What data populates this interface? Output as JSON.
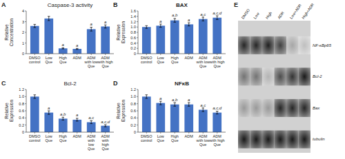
{
  "chart_data": [
    {
      "type": "bar",
      "panel_label": "A",
      "title": "Caspase-3 activity",
      "ylabel": "Relative\nConcentration",
      "categories": [
        "DMSO\ncontrol",
        "Low\nQue",
        "High\nQue",
        "ADM",
        "ADM\nwith low\nQue",
        "ADM\nwith high\nQue"
      ],
      "values": [
        2.6,
        3.3,
        0.5,
        0.45,
        2.3,
        2.55
      ],
      "errors": [
        0.15,
        0.2,
        0.05,
        0.05,
        0.18,
        0.15
      ],
      "annotations": [
        null,
        null,
        "a",
        "a",
        "a",
        "a"
      ],
      "color": "#4472C4",
      "ylim": [
        0,
        4.0
      ],
      "yticks": [
        0,
        1,
        2,
        3,
        4
      ]
    },
    {
      "type": "bar",
      "panel_label": "B",
      "title": "BAX",
      "ylabel": "Relative\nExpression",
      "categories": [
        "DMSO\ncontrol",
        "Low\nQue",
        "High\nQue",
        "ADM",
        "ADM\nwith low\nQue",
        "ADM\nwith high\nQue"
      ],
      "values": [
        1.0,
        1.05,
        1.25,
        1.1,
        1.3,
        1.35
      ],
      "errors": [
        0.05,
        0.06,
        0.07,
        0.06,
        0.07,
        0.07
      ],
      "annotations": [
        null,
        "a",
        "a,b",
        "a",
        "a,c",
        "a,c,d"
      ],
      "color": "#4472C4",
      "ylim": [
        0,
        1.6
      ],
      "yticks": [
        0,
        0.2,
        0.4,
        0.6,
        0.8,
        {
          "value": 1.0,
          "label": "1.0"
        },
        1.2,
        1.4,
        1.6
      ]
    },
    {
      "type": "bar",
      "panel_label": "C",
      "title": "Bcl-2",
      "ylabel": "Relative\nExpression",
      "categories": [
        "DMSO\ncontrol",
        "Low\nQue",
        "High\nQue",
        "ADM",
        "ADM\nwith\nlow\nQue",
        "ADM\nwith\nhigh\nQue"
      ],
      "values": [
        1.0,
        0.55,
        0.38,
        0.35,
        0.28,
        0.18
      ],
      "errors": [
        0.05,
        0.05,
        0.04,
        0.04,
        0.04,
        0.03
      ],
      "annotations": [
        null,
        "a",
        "a,b",
        "a",
        "a,c",
        "a,c,d"
      ],
      "color": "#4472C4",
      "ylim": [
        0,
        1.2
      ],
      "yticks": [
        0,
        0.2,
        0.4,
        0.6,
        0.8,
        {
          "value": 1.0,
          "label": "1.0"
        },
        1.2
      ]
    },
    {
      "type": "bar",
      "panel_label": "D",
      "title": "NFκB",
      "ylabel": "Relative\nExpression",
      "categories": [
        "DMSO\ncontrol",
        "Low\nQue",
        "High\nQue",
        "ADM",
        "ADM\nwith low\nQue",
        "ADM\nwith high\nQue"
      ],
      "values": [
        1.0,
        0.82,
        0.78,
        0.78,
        0.63,
        0.55
      ],
      "errors": [
        0.05,
        0.05,
        0.05,
        0.05,
        0.05,
        0.04
      ],
      "annotations": [
        null,
        "a",
        "a,b",
        "a",
        "a,c",
        "a,c,d"
      ],
      "color": "#4472C4",
      "ylim": [
        0,
        1.2
      ],
      "yticks": [
        0,
        0.2,
        0.4,
        0.6,
        0.8,
        {
          "value": 1.0,
          "label": "1.0"
        },
        1.2
      ]
    },
    {
      "type": "heatmap",
      "panel_label": "E",
      "categories": [
        "DMSO",
        "Low",
        "High",
        "ADR",
        "Low+ADR",
        "High+ADR"
      ],
      "rows": [
        "NF-κBp65",
        "Bcl-2",
        "Bax",
        "tubulin"
      ],
      "cells": [
        [
          0.85,
          0.85,
          0.88,
          0.75,
          0.35,
          0.25
        ],
        [
          0.55,
          0.55,
          0.3,
          0.7,
          0.8,
          0.9
        ],
        [
          0.4,
          0.4,
          0.4,
          0.85,
          0.85,
          0.85
        ],
        [
          0.9,
          0.9,
          0.9,
          0.9,
          0.9,
          0.9
        ]
      ]
    }
  ]
}
